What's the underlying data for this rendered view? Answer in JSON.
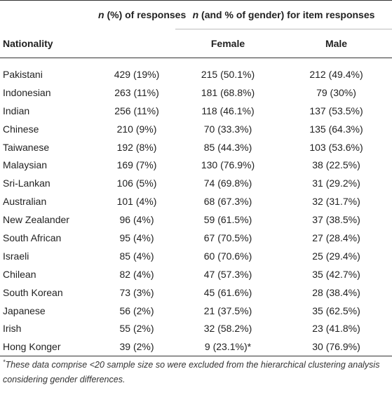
{
  "table": {
    "header": {
      "responses_n": "n",
      "responses_rest": "(%) of responses",
      "gender_n": "n",
      "gender_rest": "(and % of gender) for item responses",
      "nationality": "Nationality",
      "female": "Female",
      "male": "Male"
    },
    "rows": [
      {
        "nationality": "Pakistani",
        "responses": "429 (19%)",
        "female": "215 (50.1%)",
        "male": "212 (49.4%)"
      },
      {
        "nationality": "Indonesian",
        "responses": "263 (11%)",
        "female": "181 (68.8%)",
        "male": "79 (30%)"
      },
      {
        "nationality": "Indian",
        "responses": "256 (11%)",
        "female": "118 (46.1%)",
        "male": "137 (53.5%)"
      },
      {
        "nationality": "Chinese",
        "responses": "210 (9%)",
        "female": "70 (33.3%)",
        "male": "135 (64.3%)"
      },
      {
        "nationality": "Taiwanese",
        "responses": "192 (8%)",
        "female": "85 (44.3%)",
        "male": "103 (53.6%)"
      },
      {
        "nationality": "Malaysian",
        "responses": "169 (7%)",
        "female": "130 (76.9%)",
        "male": "38 (22.5%)"
      },
      {
        "nationality": "Sri-Lankan",
        "responses": "106 (5%)",
        "female": "74 (69.8%)",
        "male": "31 (29.2%)"
      },
      {
        "nationality": "Australian",
        "responses": "101 (4%)",
        "female": "68 (67.3%)",
        "male": "32 (31.7%)"
      },
      {
        "nationality": "New Zealander",
        "responses": "96 (4%)",
        "female": "59 (61.5%)",
        "male": "37 (38.5%)"
      },
      {
        "nationality": "South African",
        "responses": "95 (4%)",
        "female": "67 (70.5%)",
        "male": "27 (28.4%)"
      },
      {
        "nationality": "Israeli",
        "responses": "85 (4%)",
        "female": "60 (70.6%)",
        "male": "25 (29.4%)"
      },
      {
        "nationality": "Chilean",
        "responses": "82 (4%)",
        "female": "47 (57.3%)",
        "male": "35 (42.7%)"
      },
      {
        "nationality": "South Korean",
        "responses": "73 (3%)",
        "female": "45 (61.6%)",
        "male": "28 (38.4%)"
      },
      {
        "nationality": "Japanese",
        "responses": "56 (2%)",
        "female": "21 (37.5%)",
        "male": "35 (62.5%)"
      },
      {
        "nationality": "Irish",
        "responses": "55 (2%)",
        "female": "32 (58.2%)",
        "male": "23 (41.8%)"
      },
      {
        "nationality": "Hong Konger",
        "responses": "39 (2%)",
        "female": "9 (23.1%)*",
        "male": "30 (76.9%)"
      }
    ]
  },
  "footnote": {
    "marker": "*",
    "text": "These data comprise <20 sample size so were excluded from the hierarchical clustering analysis considering gender differences."
  }
}
